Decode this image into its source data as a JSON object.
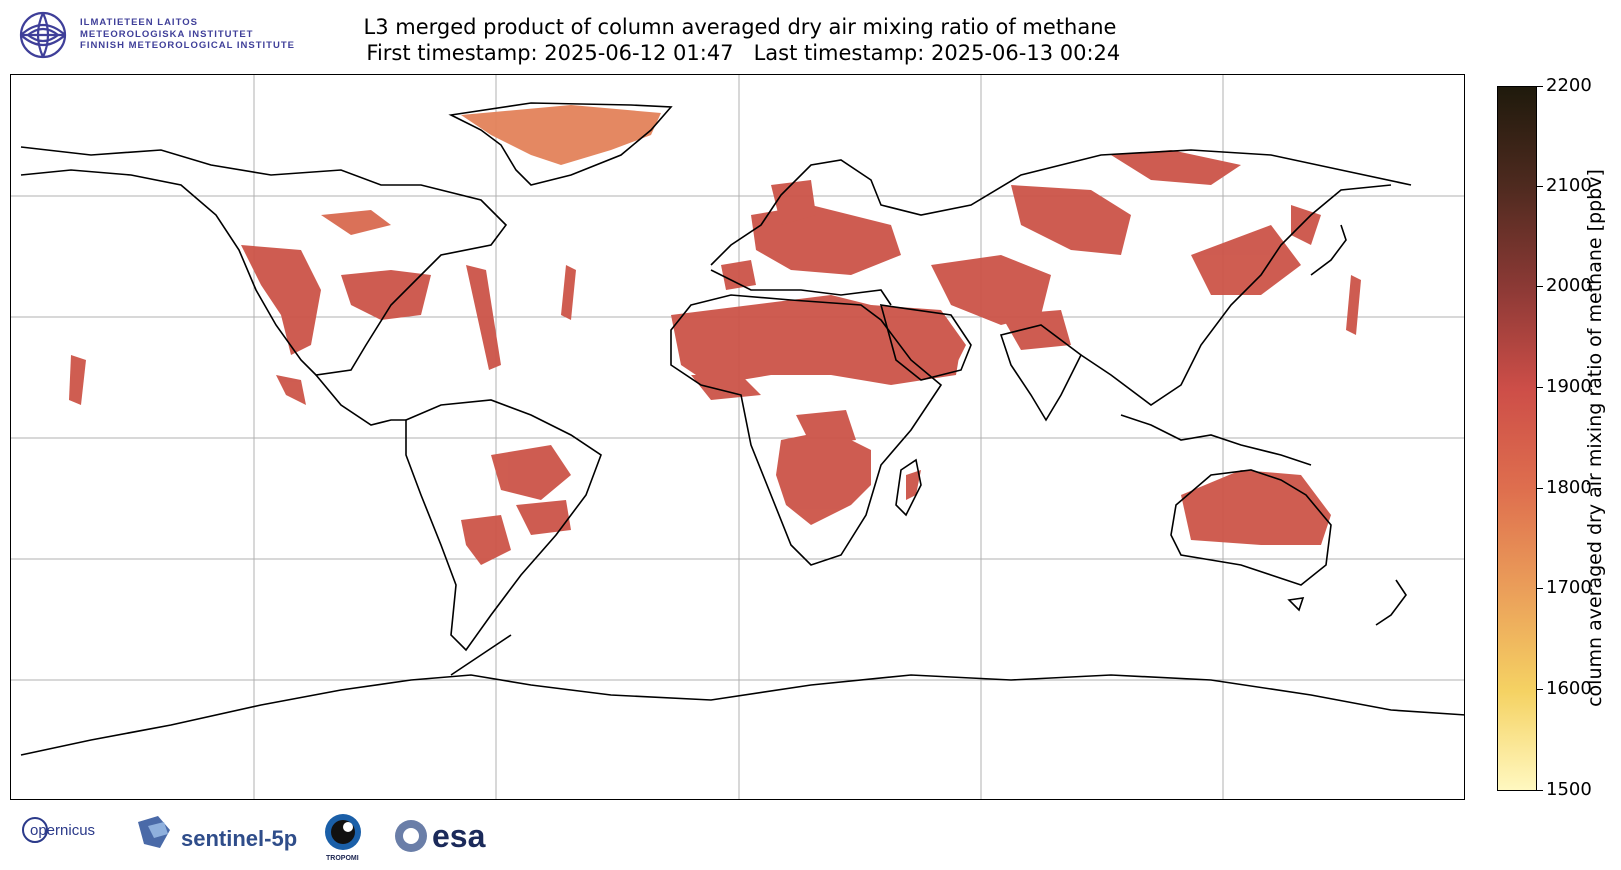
{
  "header": {
    "institute_line_1": "ILMATIETEEN LAITOS",
    "institute_line_2": "METEOROLOGISKA INSTITUTET",
    "institute_line_3": "FINNISH METEOROLOGICAL INSTITUTE",
    "title_line_1": "L3 merged product of column averaged dry air mixing ratio of methane",
    "title_line_2": " First timestamp: 2025-06-12 01:47   Last timestamp: 2025-06-13 00:24"
  },
  "colorbar": {
    "label": "column averaged dry air mixing ratio of methane [ppbv]",
    "min": 1500,
    "max": 2200,
    "ticks": [
      "1500",
      "1600",
      "1700",
      "1800",
      "1900",
      "2000",
      "2100",
      "2200"
    ],
    "colors": [
      "#fff8c0",
      "#f5d263",
      "#eba05a",
      "#de6e4e",
      "#cd4e48",
      "#8e3a36",
      "#4e2a1f",
      "#1f1a0c"
    ]
  },
  "map": {
    "projection": "plate carree",
    "gridlines": true,
    "coastline_color": "#000000",
    "data_color": "#cc5448"
  },
  "footer": {
    "logo_1": "opernicus",
    "logo_2": "sentinel-5p",
    "logo_3": "TROPOMI",
    "logo_4": "esa"
  }
}
